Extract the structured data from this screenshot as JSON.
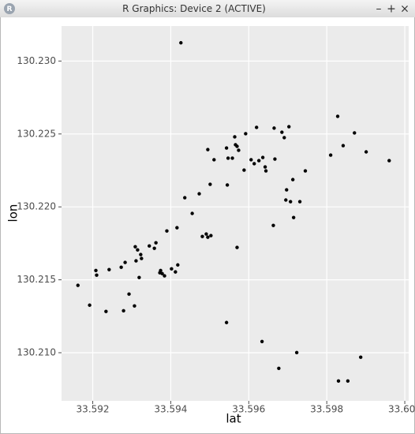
{
  "window": {
    "title": "R Graphics: Device 2 (ACTIVE)",
    "icon_label": "R",
    "buttons": [
      "–",
      "+",
      "×"
    ]
  },
  "chart_data": {
    "type": "scatter",
    "xlabel": "lat",
    "ylabel": "lon",
    "color": "#000000",
    "grid": true,
    "xlim": [
      33.5912,
      33.6001
    ],
    "ylim": [
      130.2067,
      130.2324
    ],
    "xticks": [
      33.592,
      33.594,
      33.596,
      33.598,
      {
        "value": 33.6,
        "label": "33.600"
      }
    ],
    "yticks": [
      {
        "value": 130.21,
        "label": "130.210"
      },
      130.215,
      {
        "value": 130.22,
        "label": "130.220"
      },
      130.225,
      {
        "value": 130.23,
        "label": "130.230"
      }
    ],
    "x": [
      33.59426,
      33.59162,
      33.59192,
      33.59208,
      33.5921,
      33.59234,
      33.59242,
      33.59273,
      33.59279,
      33.59283,
      33.59293,
      33.59307,
      33.59309,
      33.59311,
      33.59315,
      33.59319,
      33.59323,
      33.59325,
      33.59345,
      33.59358,
      33.59362,
      33.59372,
      33.59374,
      33.59378,
      33.59384,
      33.5939,
      33.59402,
      33.59412,
      33.59416,
      33.59418,
      33.59436,
      33.59455,
      33.59473,
      33.59481,
      33.59491,
      33.59495,
      33.59503,
      33.59495,
      33.59501,
      33.59511,
      33.59543,
      33.59543,
      33.59545,
      33.59547,
      33.59558,
      33.59564,
      33.59566,
      33.5957,
      33.5957,
      33.59574,
      33.59588,
      33.59592,
      33.59606,
      33.59614,
      33.5962,
      33.59626,
      33.59636,
      33.59642,
      33.59644,
      33.59634,
      33.59663,
      33.59665,
      33.59667,
      33.59677,
      33.59685,
      33.59691,
      33.59695,
      33.59697,
      33.59703,
      33.59707,
      33.59713,
      33.59715,
      33.59723,
      33.59731,
      33.59745,
      33.5981,
      33.59828,
      33.5983,
      33.59842,
      33.59854,
      33.59871,
      33.59887,
      33.59901,
      33.5996
    ],
    "values": [
      130.23125,
      130.21462,
      130.21326,
      130.21564,
      130.21532,
      130.21283,
      130.2157,
      130.21586,
      130.21288,
      130.21619,
      130.21402,
      130.21321,
      130.21727,
      130.2163,
      130.21705,
      130.21516,
      130.21673,
      130.21646,
      130.21732,
      130.21716,
      130.21754,
      130.21548,
      130.21564,
      130.21543,
      130.21527,
      130.21835,
      130.21575,
      130.21554,
      130.21857,
      130.21602,
      130.22063,
      130.21955,
      130.2209,
      130.21797,
      130.21814,
      130.21792,
      130.21803,
      130.22393,
      130.22155,
      130.22323,
      130.22404,
      130.21207,
      130.2215,
      130.22334,
      130.22334,
      130.2248,
      130.22426,
      130.21722,
      130.22415,
      130.22388,
      130.22252,
      130.22502,
      130.22323,
      130.22296,
      130.22545,
      130.22317,
      130.22339,
      130.22274,
      130.22247,
      130.21077,
      130.21873,
      130.2254,
      130.22328,
      130.20893,
      130.22512,
      130.22475,
      130.22047,
      130.22117,
      130.2255,
      130.22036,
      130.22187,
      130.21927,
      130.21001,
      130.22036,
      130.22247,
      130.22355,
      130.22621,
      130.20806,
      130.2242,
      130.20806,
      130.22507,
      130.20969,
      130.22377,
      130.22317
    ]
  }
}
